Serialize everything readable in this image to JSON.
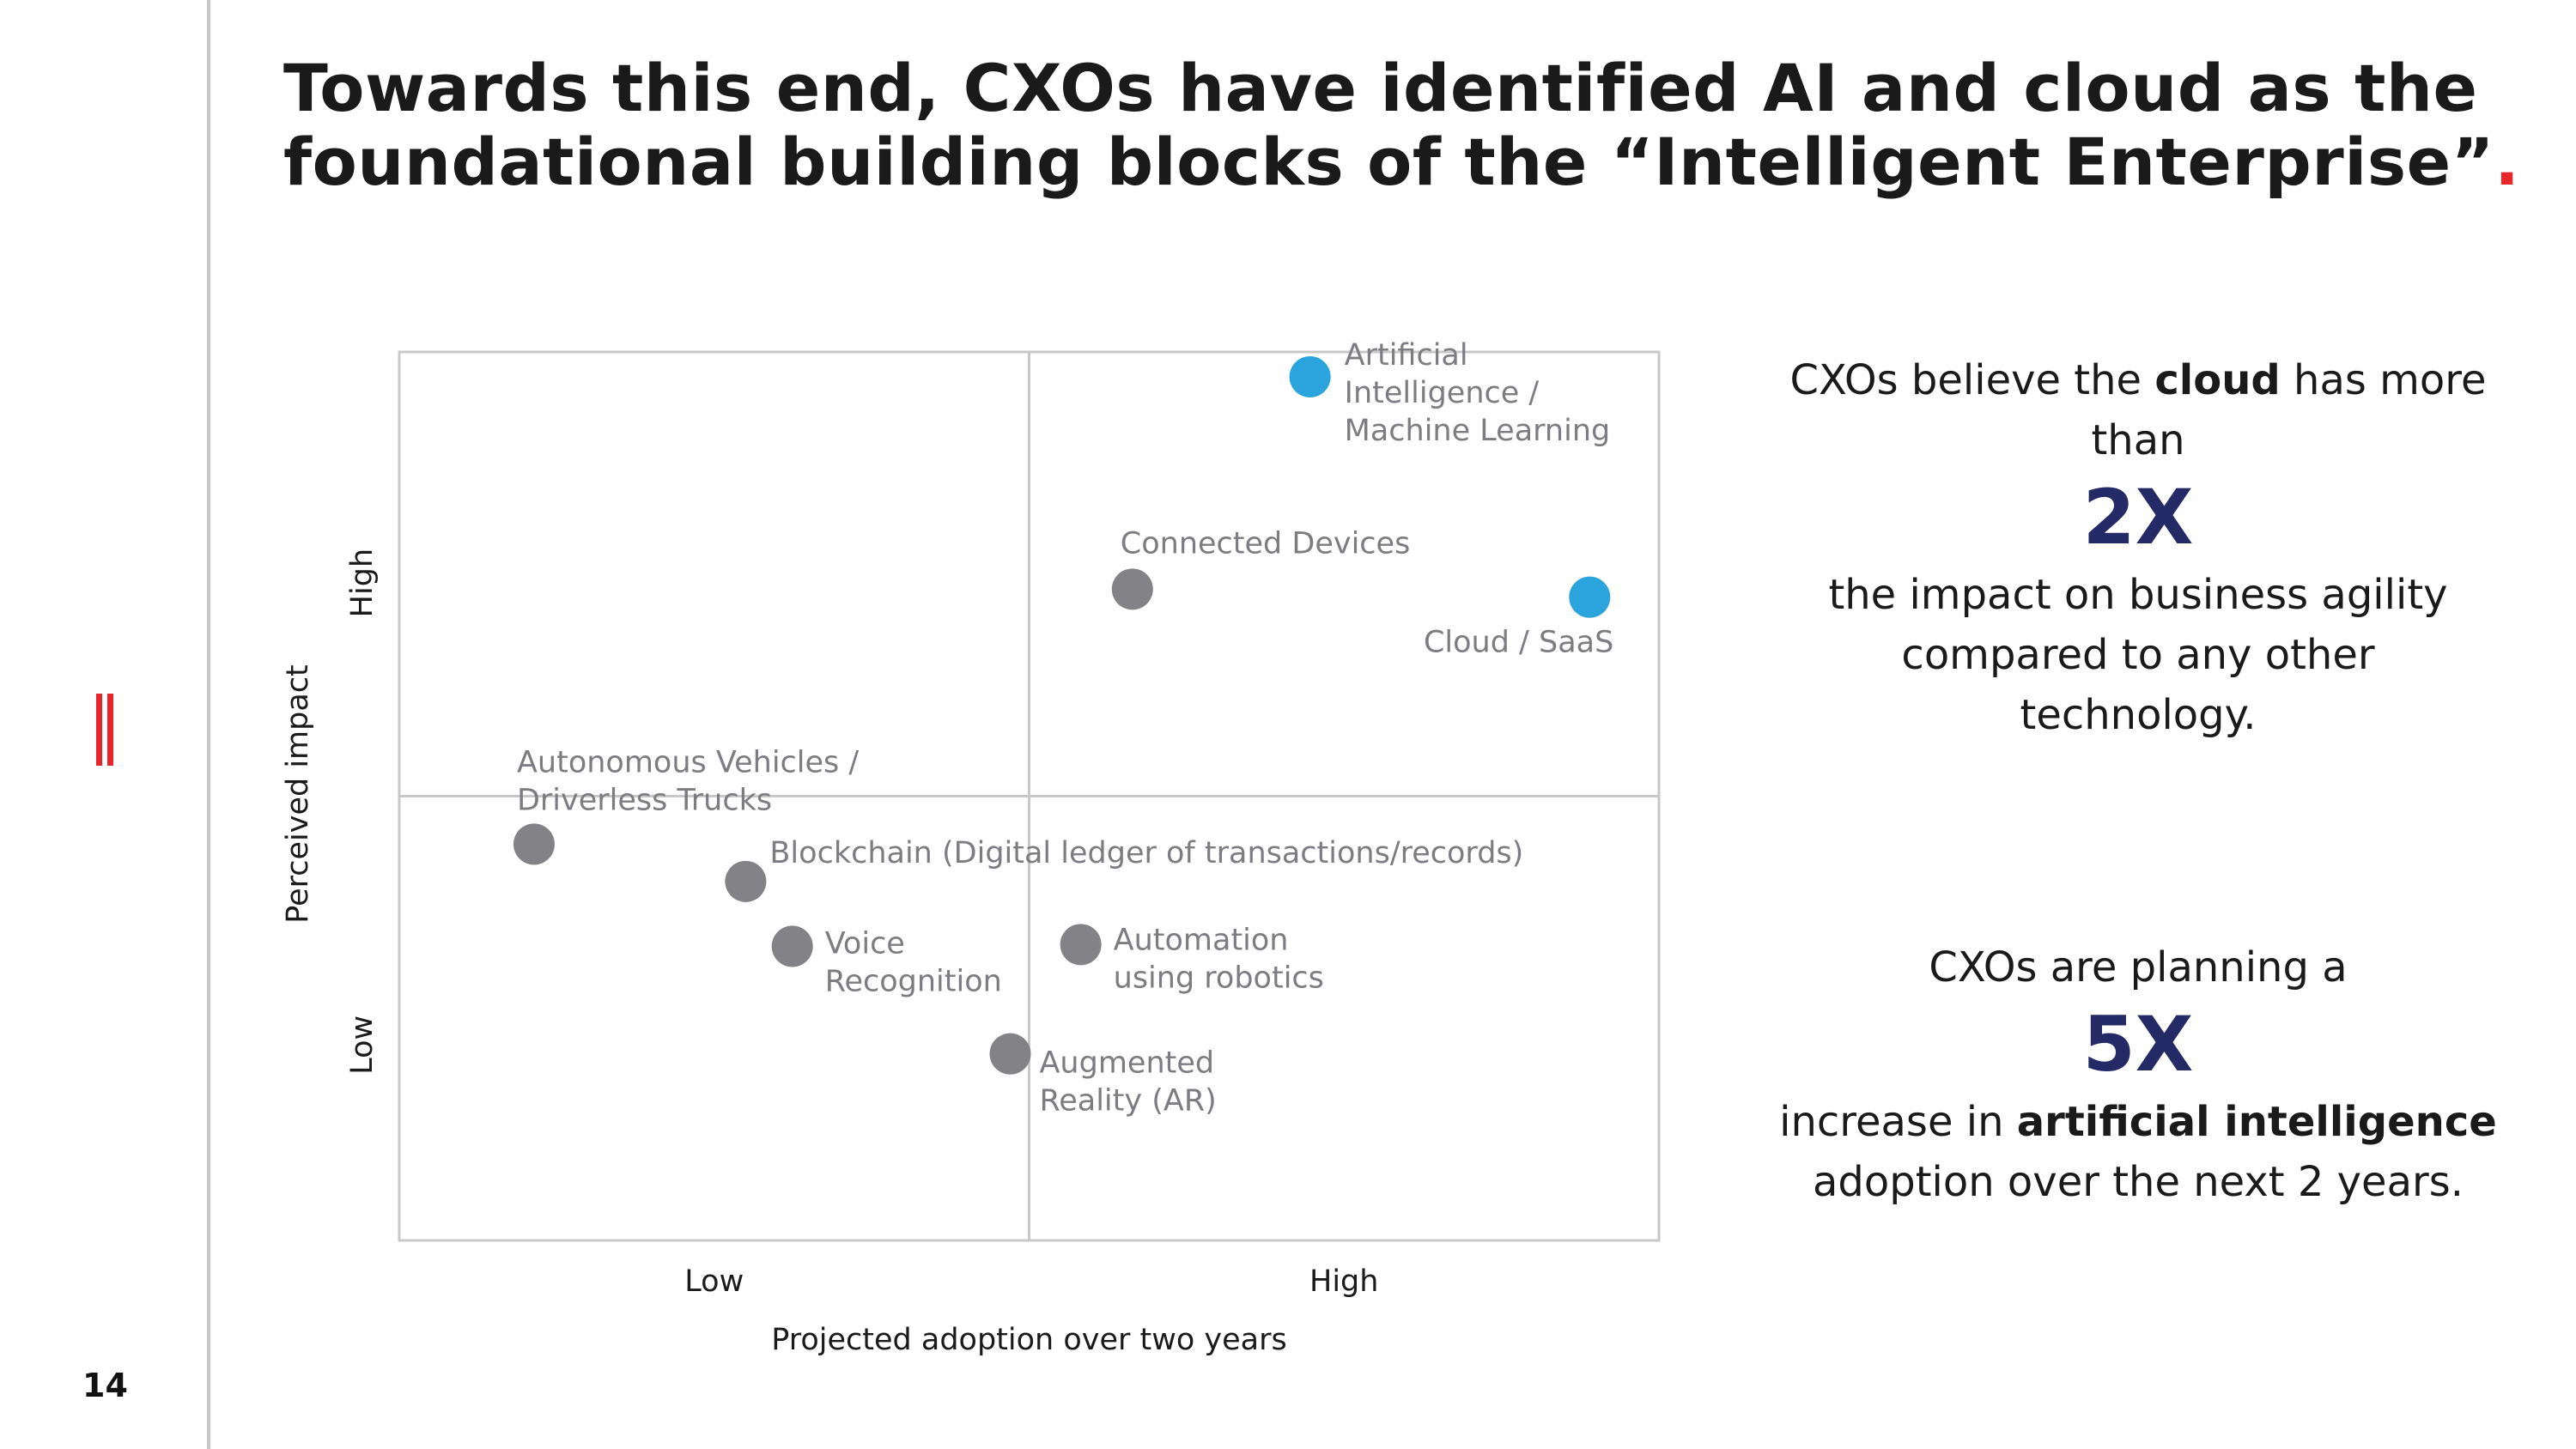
{
  "page": {
    "number": "14"
  },
  "headline": {
    "line1": "Towards this end, CXOs have identified AI and cloud as the",
    "line2": "foundational building blocks of the “Intelligent Enterprise”",
    "end_dot": "."
  },
  "colors": {
    "accent_red": "#e8262a",
    "highlight_blue": "#2ba3dc",
    "dot_gray": "#828287",
    "stat_navy": "#232a66",
    "grid": "#c8c8c8"
  },
  "chart_data": {
    "type": "scatter",
    "xlabel": "Projected adoption over two years",
    "ylabel": "Perceived impact",
    "x_ticks": [
      "Low",
      "High"
    ],
    "y_ticks": [
      "Low",
      "High"
    ],
    "xlim": [
      0,
      1
    ],
    "ylim": [
      0,
      1
    ],
    "quadrant_divider": {
      "x": 0.5,
      "y": 0.5
    },
    "grid": true,
    "legend": "none",
    "points": [
      {
        "name": "Artificial Intelligence / Machine Learning",
        "label_lines": [
          "Artificial",
          "Intelligence /",
          "Machine Learning"
        ],
        "x": 0.723,
        "y": 0.972,
        "highlight": true
      },
      {
        "name": "Connected Devices",
        "label_lines": [
          "Connected Devices"
        ],
        "x": 0.582,
        "y": 0.733,
        "highlight": false
      },
      {
        "name": "Cloud / SaaS",
        "label_lines": [
          "Cloud / SaaS"
        ],
        "x": 0.945,
        "y": 0.724,
        "highlight": true
      },
      {
        "name": "Autonomous Vehicles / Driverless Trucks",
        "label_lines": [
          "Autonomous Vehicles /",
          "Driverless Trucks"
        ],
        "x": 0.107,
        "y": 0.446,
        "highlight": false
      },
      {
        "name": "Blockchain (Digital ledger of transactions/records)",
        "label_lines": [
          "Blockchain (Digital ledger of transactions/records)"
        ],
        "x": 0.275,
        "y": 0.404,
        "highlight": false
      },
      {
        "name": "Voice Recognition",
        "label_lines": [
          "Voice",
          "Recognition"
        ],
        "x": 0.312,
        "y": 0.331,
        "highlight": false
      },
      {
        "name": "Automation using robotics",
        "label_lines": [
          "Automation",
          "using robotics"
        ],
        "x": 0.541,
        "y": 0.333,
        "highlight": false
      },
      {
        "name": "Augmented Reality (AR)",
        "label_lines": [
          "Augmented",
          "Reality (AR)"
        ],
        "x": 0.485,
        "y": 0.21,
        "highlight": false
      }
    ]
  },
  "stats": {
    "cloud": {
      "pre": "CXOs believe the",
      "bold": "cloud",
      "post": "has more",
      "line2": "than",
      "number": "2X",
      "desc_line1": "the impact on business agility",
      "desc_line2": "compared to any other",
      "desc_line3": "technology."
    },
    "ai": {
      "pre": "CXOs are planning a",
      "number": "5X",
      "line_pre": "increase in",
      "line_bold": "artificial intelligence",
      "line_last": "adoption over the next 2 years."
    }
  }
}
